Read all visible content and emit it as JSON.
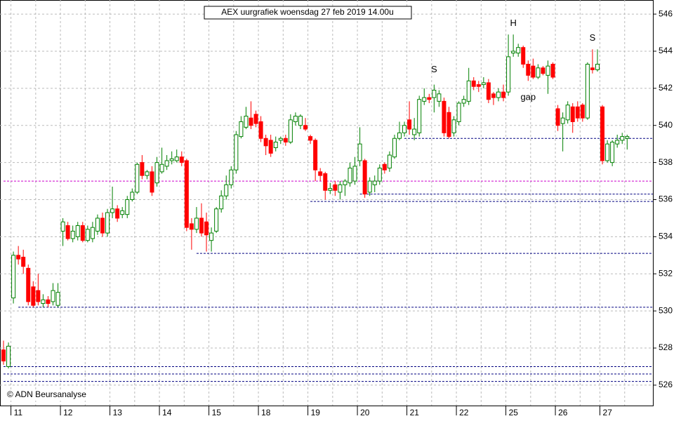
{
  "chart_data": {
    "type": "candlestick",
    "title": "AEX uurgrafiek woensdag 27 feb 2019 14.00u",
    "footer": "© ADN Beursanalyse",
    "up_color": "#008000",
    "down_color": "#ff0000",
    "level_color": "#000080",
    "pivot_color": "#cc00cc",
    "ylim": [
      524.9,
      546.76
    ],
    "yticks": [
      526,
      528,
      530,
      532,
      534,
      536,
      538,
      540,
      542,
      544,
      546
    ],
    "grid": true,
    "days": [
      {
        "label": "11",
        "from": 2
      },
      {
        "label": "12",
        "from": 12
      },
      {
        "label": "13",
        "from": 22
      },
      {
        "label": "14",
        "from": 32
      },
      {
        "label": "15",
        "from": 42
      },
      {
        "label": "18",
        "from": 52
      },
      {
        "label": "19",
        "from": 62
      },
      {
        "label": "20",
        "from": 72
      },
      {
        "label": "21",
        "from": 82
      },
      {
        "label": "22",
        "from": 92
      },
      {
        "label": "25",
        "from": 102
      },
      {
        "label": "26",
        "from": 112
      },
      {
        "label": "27",
        "from": 121
      }
    ],
    "levels": [
      {
        "value": 530.2,
        "from": 3
      },
      {
        "value": 527.0,
        "from": 0
      },
      {
        "value": 526.6,
        "from": 0
      },
      {
        "value": 526.2,
        "from": 0
      },
      {
        "value": 533.1,
        "from": 39
      },
      {
        "value": 535.9,
        "from": 62
      },
      {
        "value": 536.3,
        "from": 72
      },
      {
        "value": 539.3,
        "from": 81
      }
    ],
    "pivot": {
      "value": 537.0,
      "from": 0
    },
    "annotations": [
      {
        "text": "S",
        "index": 87,
        "value": 543.0
      },
      {
        "text": "H",
        "index": 103,
        "value": 545.5
      },
      {
        "text": "S",
        "index": 119,
        "value": 544.7
      },
      {
        "text": "gap",
        "index": 106,
        "value": 541.5
      }
    ],
    "ohlc": [
      [
        527.9,
        528.4,
        527.1,
        527.3
      ],
      [
        527.0,
        528.3,
        526.9,
        528.1
      ],
      [
        530.7,
        533.2,
        530.4,
        533.0
      ],
      [
        533.0,
        533.5,
        532.5,
        532.8
      ],
      [
        532.9,
        533.3,
        532.0,
        532.4
      ],
      [
        532.3,
        532.5,
        530.3,
        530.5
      ],
      [
        531.3,
        531.6,
        530.2,
        530.3
      ],
      [
        531.1,
        532.0,
        530.3,
        530.5
      ],
      [
        530.4,
        530.9,
        530.2,
        530.6
      ],
      [
        530.6,
        530.8,
        530.2,
        530.4
      ],
      [
        530.5,
        531.5,
        530.3,
        531.1
      ],
      [
        530.3,
        531.5,
        530.2,
        531.0
      ],
      [
        534.3,
        535.0,
        533.5,
        534.8
      ],
      [
        534.6,
        534.8,
        533.8,
        533.9
      ],
      [
        533.9,
        534.6,
        533.7,
        534.3
      ],
      [
        534.0,
        534.8,
        533.8,
        534.6
      ],
      [
        534.6,
        534.8,
        533.7,
        533.8
      ],
      [
        533.8,
        534.6,
        533.7,
        534.4
      ],
      [
        533.9,
        534.8,
        533.7,
        534.5
      ],
      [
        534.3,
        535.2,
        534.1,
        535.0
      ],
      [
        535.0,
        535.3,
        534.0,
        534.2
      ],
      [
        534.2,
        535.5,
        534.0,
        535.3
      ],
      [
        535.3,
        536.7,
        535.0,
        535.5
      ],
      [
        535.5,
        535.7,
        534.8,
        535.0
      ],
      [
        535.2,
        535.6,
        535.0,
        535.4
      ],
      [
        535.2,
        536.2,
        535.0,
        536.0
      ],
      [
        536.0,
        536.6,
        535.9,
        536.4
      ],
      [
        536.4,
        538.0,
        536.3,
        537.9
      ],
      [
        538.0,
        538.4,
        537.1,
        537.3
      ],
      [
        537.3,
        537.6,
        537.1,
        537.5
      ],
      [
        537.5,
        537.8,
        536.2,
        536.4
      ],
      [
        536.9,
        538.3,
        536.7,
        538.0
      ],
      [
        537.5,
        538.8,
        537.4,
        537.9
      ],
      [
        537.8,
        538.4,
        537.6,
        538.1
      ],
      [
        538.1,
        538.6,
        537.9,
        538.2
      ],
      [
        538.1,
        538.7,
        538.0,
        538.3
      ],
      [
        538.3,
        538.6,
        537.8,
        538.0
      ],
      [
        538.1,
        538.2,
        534.3,
        534.5
      ],
      [
        534.7,
        535.0,
        533.3,
        534.4
      ],
      [
        534.4,
        535.6,
        534.2,
        535.0
      ],
      [
        535.0,
        535.8,
        534.0,
        534.2
      ],
      [
        534.8,
        535.3,
        533.2,
        534.1
      ],
      [
        533.8,
        534.5,
        533.2,
        534.2
      ],
      [
        534.3,
        535.6,
        534.2,
        535.5
      ],
      [
        535.5,
        536.5,
        535.3,
        536.2
      ],
      [
        536.2,
        537.3,
        536.0,
        536.8
      ],
      [
        536.8,
        537.8,
        536.6,
        537.6
      ],
      [
        537.6,
        539.7,
        537.4,
        539.5
      ],
      [
        539.4,
        540.5,
        539.3,
        540.2
      ],
      [
        539.9,
        541.0,
        539.8,
        540.5
      ],
      [
        540.4,
        541.3,
        539.8,
        540.0
      ],
      [
        540.6,
        540.8,
        539.9,
        540.1
      ],
      [
        540.2,
        540.5,
        539.1,
        539.3
      ],
      [
        539.3,
        539.5,
        538.4,
        538.9
      ],
      [
        539.2,
        539.5,
        538.3,
        538.5
      ],
      [
        538.8,
        539.4,
        538.6,
        539.1
      ],
      [
        539.2,
        539.4,
        539.0,
        539.3
      ],
      [
        539.3,
        539.5,
        538.9,
        539.1
      ],
      [
        539.1,
        540.6,
        539.0,
        540.3
      ],
      [
        540.2,
        540.7,
        540.0,
        540.5
      ],
      [
        540.0,
        540.6,
        539.8,
        540.5
      ],
      [
        540.0,
        540.4,
        539.7,
        539.8
      ],
      [
        539.4,
        539.5,
        539.0,
        539.2
      ],
      [
        539.2,
        539.3,
        537.0,
        537.6
      ],
      [
        537.5,
        537.7,
        537.0,
        537.3
      ],
      [
        537.4,
        537.5,
        536.0,
        536.5
      ],
      [
        536.5,
        536.9,
        536.3,
        536.6
      ],
      [
        536.8,
        537.0,
        536.2,
        536.5
      ],
      [
        536.4,
        537.0,
        536.0,
        536.8
      ],
      [
        536.8,
        537.1,
        536.2,
        537.0
      ],
      [
        536.9,
        538.0,
        536.7,
        537.7
      ],
      [
        537.0,
        538.3,
        536.8,
        537.8
      ],
      [
        538.1,
        539.9,
        537.8,
        539.0
      ],
      [
        538.1,
        538.2,
        536.1,
        536.3
      ],
      [
        536.4,
        537.2,
        536.2,
        537.0
      ],
      [
        536.8,
        537.3,
        536.4,
        537.0
      ],
      [
        537.0,
        537.9,
        536.8,
        537.7
      ],
      [
        537.9,
        538.0,
        537.4,
        537.6
      ],
      [
        537.7,
        538.6,
        537.5,
        538.4
      ],
      [
        538.3,
        539.5,
        538.2,
        539.3
      ],
      [
        539.3,
        540.2,
        539.2,
        539.6
      ],
      [
        539.6,
        540.2,
        539.4,
        540.0
      ],
      [
        540.3,
        541.3,
        539.5,
        539.8
      ],
      [
        539.5,
        540.4,
        539.2,
        539.8
      ],
      [
        539.6,
        541.6,
        539.4,
        541.4
      ],
      [
        541.3,
        542.0,
        541.1,
        541.5
      ],
      [
        541.5,
        541.7,
        541.2,
        541.4
      ],
      [
        541.5,
        542.2,
        540.7,
        541.9
      ],
      [
        541.3,
        541.9,
        541.0,
        541.7
      ],
      [
        541.3,
        541.5,
        539.4,
        539.6
      ],
      [
        540.7,
        541.0,
        539.3,
        539.4
      ],
      [
        539.6,
        540.5,
        539.4,
        540.3
      ],
      [
        540.2,
        541.3,
        540.0,
        541.2
      ],
      [
        541.2,
        541.6,
        541.0,
        541.4
      ],
      [
        541.3,
        543.1,
        541.1,
        542.4
      ],
      [
        542.4,
        542.6,
        541.9,
        542.1
      ],
      [
        542.2,
        542.4,
        541.8,
        542.1
      ],
      [
        542.2,
        542.6,
        542.0,
        542.3
      ],
      [
        542.3,
        542.5,
        541.2,
        541.4
      ],
      [
        541.7,
        541.8,
        541.1,
        541.5
      ],
      [
        541.5,
        542.0,
        541.3,
        541.8
      ],
      [
        541.8,
        542.2,
        541.3,
        541.5
      ],
      [
        541.8,
        544.9,
        541.6,
        543.7
      ],
      [
        543.9,
        544.9,
        543.7,
        544.0
      ],
      [
        543.9,
        544.4,
        543.7,
        544.2
      ],
      [
        544.2,
        544.3,
        543.1,
        543.3
      ],
      [
        543.3,
        543.5,
        542.4,
        542.7
      ],
      [
        543.2,
        543.6,
        542.5,
        542.6
      ],
      [
        542.6,
        543.3,
        542.5,
        543.1
      ],
      [
        543.1,
        543.2,
        542.7,
        542.8
      ],
      [
        542.7,
        543.5,
        541.7,
        543.2
      ],
      [
        543.3,
        543.4,
        542.5,
        542.6
      ],
      [
        540.9,
        541.1,
        539.7,
        540.0
      ],
      [
        540.1,
        540.7,
        538.6,
        540.4
      ],
      [
        540.3,
        541.3,
        540.1,
        541.1
      ],
      [
        541.0,
        541.2,
        539.6,
        540.2
      ],
      [
        541.0,
        541.3,
        540.2,
        540.4
      ],
      [
        541.1,
        541.2,
        540.2,
        540.4
      ],
      [
        540.4,
        543.4,
        540.3,
        543.3
      ],
      [
        543.1,
        544.1,
        542.8,
        543.0
      ],
      [
        543.0,
        544.1,
        542.9,
        543.3
      ],
      [
        541.0,
        541.1,
        537.9,
        538.1
      ],
      [
        538.1,
        539.2,
        538.0,
        539.0
      ],
      [
        538.0,
        539.2,
        537.8,
        539.1
      ],
      [
        539.0,
        539.5,
        538.8,
        539.2
      ],
      [
        539.2,
        539.6,
        539.0,
        539.4
      ],
      [
        539.3,
        539.5,
        538.7,
        539.4
      ]
    ]
  }
}
